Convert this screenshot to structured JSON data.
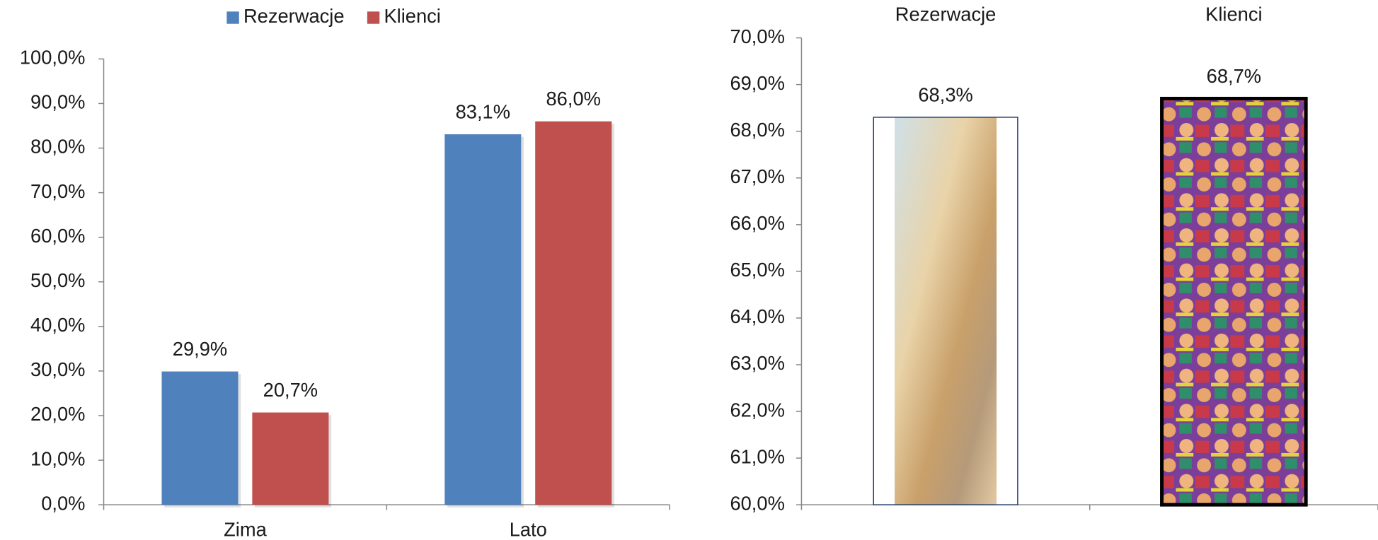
{
  "chart_data": [
    {
      "type": "bar",
      "categories": [
        "Zima",
        "Lato"
      ],
      "series": [
        {
          "name": "Rezerwacje",
          "color": "#4f81bd",
          "values": [
            29.9,
            83.1
          ],
          "value_labels": [
            "29,9%",
            "83,1%"
          ]
        },
        {
          "name": "Klienci",
          "color": "#c0504d",
          "values": [
            20.7,
            86.0
          ],
          "value_labels": [
            "20,7%",
            "86,0%"
          ]
        }
      ],
      "ylim": [
        0,
        100
      ],
      "yticks": [
        {
          "value": 0,
          "label": "0,0%"
        },
        {
          "value": 10,
          "label": "10,0%"
        },
        {
          "value": 20,
          "label": "20,0%"
        },
        {
          "value": 30,
          "label": "30,0%"
        },
        {
          "value": 40,
          "label": "40,0%"
        },
        {
          "value": 50,
          "label": "50,0%"
        },
        {
          "value": 60,
          "label": "60,0%"
        },
        {
          "value": 70,
          "label": "70,0%"
        },
        {
          "value": 80,
          "label": "80,0%"
        },
        {
          "value": 90,
          "label": "90,0%"
        },
        {
          "value": 100,
          "label": "100,0%"
        }
      ],
      "legend": "top"
    },
    {
      "type": "picture-bar",
      "categories": [
        "Rezerwacje",
        "Klienci"
      ],
      "values": [
        68.3,
        68.7
      ],
      "value_labels": [
        "68,3%",
        "68,7%"
      ],
      "ylim": [
        60,
        70
      ],
      "yticks": [
        {
          "value": 60,
          "label": "60,0%"
        },
        {
          "value": 61,
          "label": "61,0%"
        },
        {
          "value": 62,
          "label": "62,0%"
        },
        {
          "value": 63,
          "label": "63,0%"
        },
        {
          "value": 64,
          "label": "64,0%"
        },
        {
          "value": 65,
          "label": "65,0%"
        },
        {
          "value": 66,
          "label": "66,0%"
        },
        {
          "value": 67,
          "label": "67,0%"
        },
        {
          "value": 68,
          "label": "68,0%"
        },
        {
          "value": 69,
          "label": "69,0%"
        },
        {
          "value": 70,
          "label": "70,0%"
        }
      ]
    }
  ]
}
